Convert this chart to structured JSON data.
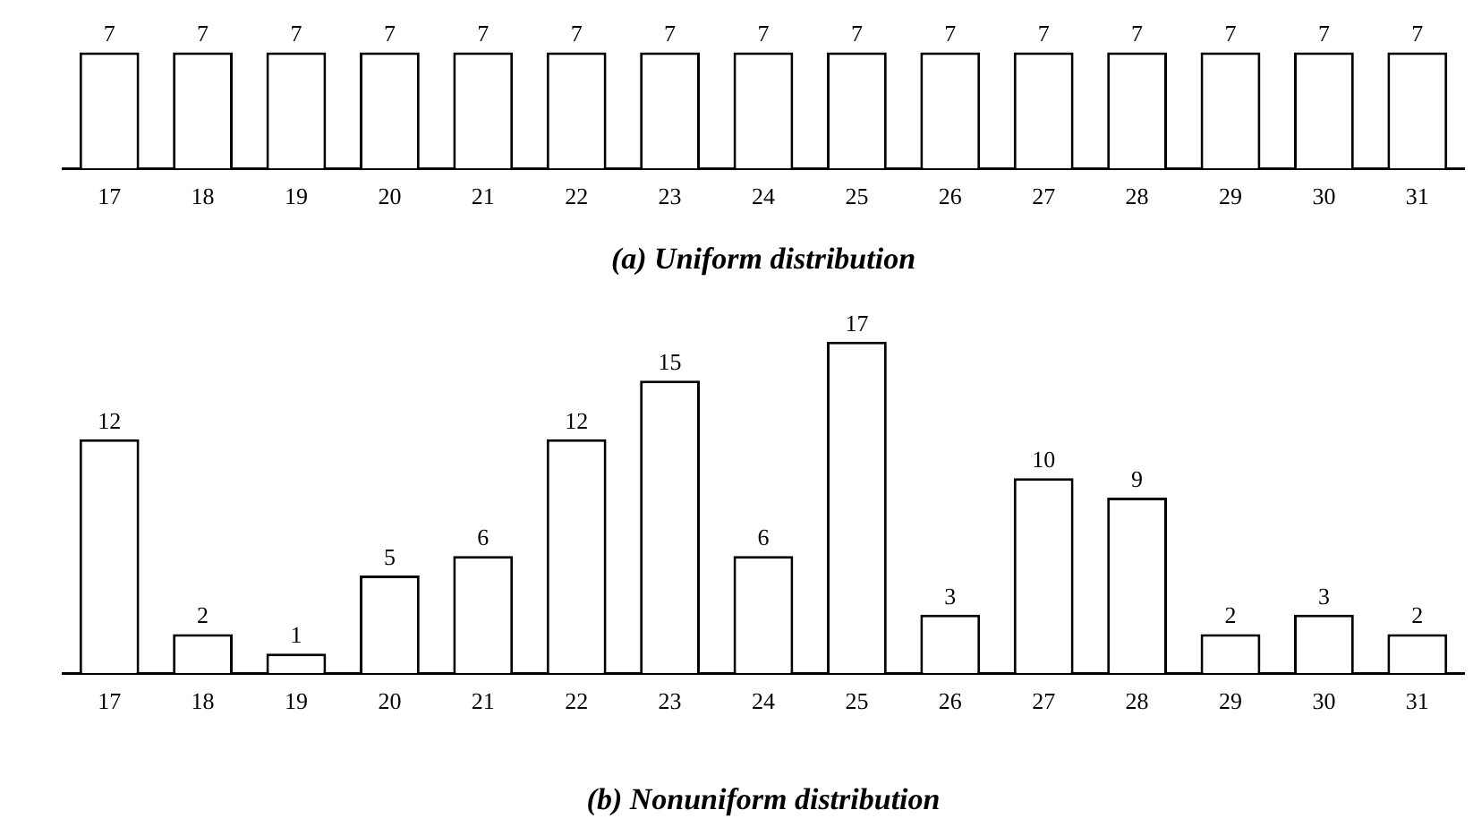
{
  "chart_data": [
    {
      "type": "bar",
      "title": "(a) Uniform distribution",
      "categories": [
        "17",
        "18",
        "19",
        "20",
        "21",
        "22",
        "23",
        "24",
        "25",
        "26",
        "27",
        "28",
        "29",
        "30",
        "31"
      ],
      "values": [
        7,
        7,
        7,
        7,
        7,
        7,
        7,
        7,
        7,
        7,
        7,
        7,
        7,
        7,
        7
      ],
      "color": "#ffffff",
      "data_labels": true,
      "tick_labels": "x",
      "grid": false,
      "legend": false
    },
    {
      "type": "bar",
      "title": "(b) Nonuniform distribution",
      "categories": [
        "17",
        "18",
        "19",
        "20",
        "21",
        "22",
        "23",
        "24",
        "25",
        "26",
        "27",
        "28",
        "29",
        "30",
        "31"
      ],
      "values": [
        12,
        2,
        1,
        5,
        6,
        12,
        15,
        6,
        17,
        3,
        10,
        9,
        2,
        3,
        2
      ],
      "color": "#ffffff",
      "data_labels": true,
      "tick_labels": "x",
      "grid": false,
      "legend": false
    }
  ]
}
